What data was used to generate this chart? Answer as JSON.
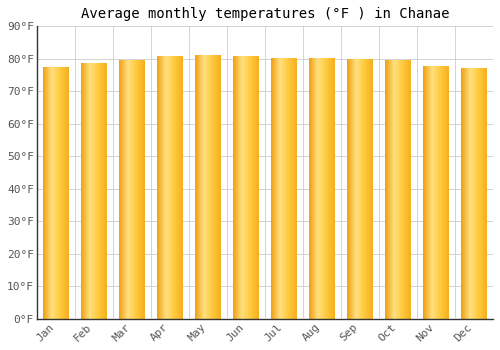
{
  "title": "Average monthly temperatures (°F ) in Chanae",
  "months": [
    "Jan",
    "Feb",
    "Mar",
    "Apr",
    "May",
    "Jun",
    "Jul",
    "Aug",
    "Sep",
    "Oct",
    "Nov",
    "Dec"
  ],
  "values": [
    77.5,
    78.8,
    79.7,
    81.0,
    81.3,
    80.8,
    80.1,
    80.1,
    79.9,
    79.5,
    77.9,
    77.2
  ],
  "ylim": [
    0,
    90
  ],
  "yticks": [
    0,
    10,
    20,
    30,
    40,
    50,
    60,
    70,
    80,
    90
  ],
  "ytick_labels": [
    "0°F",
    "10°F",
    "20°F",
    "30°F",
    "40°F",
    "50°F",
    "60°F",
    "70°F",
    "80°F",
    "90°F"
  ],
  "bar_color_dark": "#F0A010",
  "bar_color_mid": "#FFCC40",
  "bar_color_light": "#FFE080",
  "background_color": "#FFFFFF",
  "plot_bg_color": "#FFFFFF",
  "grid_color": "#CCCCCC",
  "title_fontsize": 10,
  "tick_fontsize": 8,
  "font_family": "monospace",
  "bar_width": 0.68,
  "figsize": [
    5.0,
    3.5
  ],
  "dpi": 100
}
